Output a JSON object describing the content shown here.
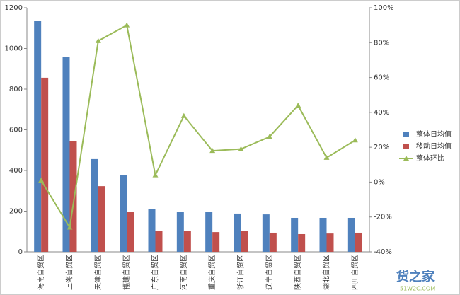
{
  "chart_data": {
    "type": "bar_line",
    "categories": [
      "海南自贸区",
      "上海自贸区",
      "天津自贸区",
      "福建自贸区",
      "广东自贸区",
      "河南自贸区",
      "重庆自贸区",
      "浙江自贸区",
      "辽宁自贸区",
      "陕西自贸区",
      "湖北自贸区",
      "四川自贸区"
    ],
    "series": [
      {
        "name": "整体日均值",
        "color": "#4f81bd",
        "type": "bar",
        "values": [
          1134,
          960,
          456,
          376,
          209,
          198,
          195,
          188,
          184,
          167,
          167,
          167
        ]
      },
      {
        "name": "移动日均值",
        "color": "#c0504d",
        "type": "bar",
        "values": [
          856,
          546,
          323,
          195,
          104,
          101,
          97,
          101,
          94,
          87,
          90,
          94
        ]
      },
      {
        "name": "整体环比",
        "color": "#9bbb59",
        "type": "line",
        "axis": "y2",
        "values": [
          1,
          -26,
          81,
          90,
          4,
          38,
          18,
          19,
          26,
          44,
          14,
          24
        ]
      }
    ],
    "ylim": [
      0,
      1200
    ],
    "yticks": [
      0,
      200,
      400,
      600,
      800,
      1000,
      1200
    ],
    "y2lim": [
      -40,
      100
    ],
    "y2ticks": [
      {
        "value": -40,
        "label": "-40%"
      },
      {
        "value": -20,
        "label": "-20%"
      },
      {
        "value": 0,
        "label": "0%"
      },
      {
        "value": 20,
        "label": "20%"
      },
      {
        "value": 40,
        "label": "40%"
      },
      {
        "value": 60,
        "label": "60%"
      },
      {
        "value": 80,
        "label": "80%"
      },
      {
        "value": 100,
        "label": "100%"
      }
    ],
    "legend": "right",
    "watermark": [
      "货之家",
      "51W2C.COM"
    ]
  }
}
